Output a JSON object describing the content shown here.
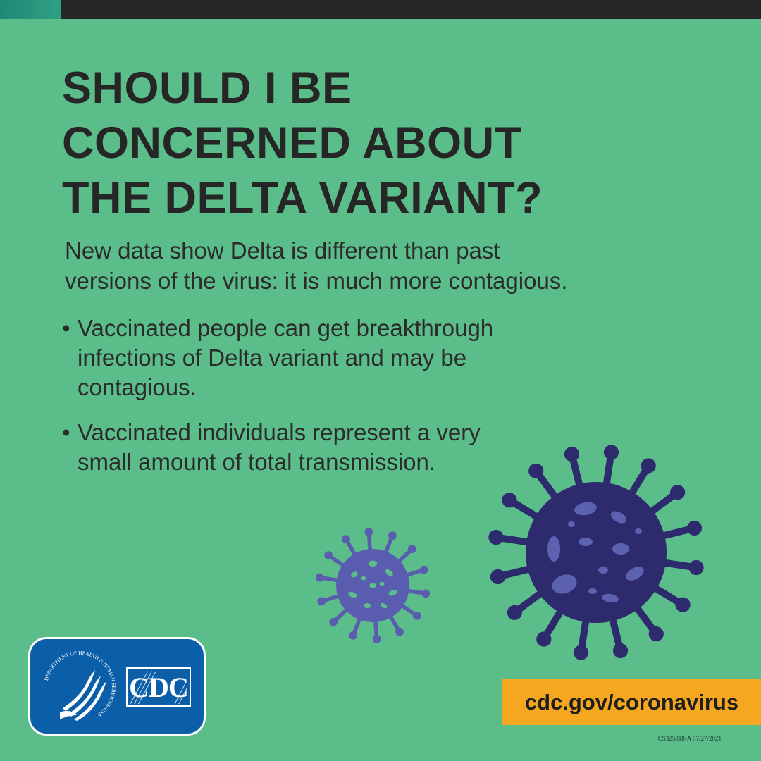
{
  "headline": {
    "line1": "SHOULD I BE",
    "line2": "CONCERNED ABOUT",
    "line3": "THE DELTA VARIANT?"
  },
  "intro": {
    "line1": "New data show Delta is different than past",
    "line2": "versions of the virus: it is much more contagious."
  },
  "bullets": [
    {
      "marker": "•",
      "line1": "Vaccinated people can get breakthrough",
      "line2": "infections of Delta variant and may be",
      "line3": "contagious."
    },
    {
      "marker": "•",
      "line1": "Vaccinated individuals represent a very",
      "line2": "small amount of total transmission."
    }
  ],
  "logo": {
    "hhs_ring_text": "DEPARTMENT OF HEALTH & HUMAN SERVICES·USA",
    "cdc_text": "CDC",
    "icon": "hhs-eagle-icon"
  },
  "url": "cdc.gov/coronavirus",
  "code": "CS325818-A 07/27/2021",
  "colors": {
    "background": "#5bbd8a",
    "topbar": "#262626",
    "headline": "#262626",
    "virus_large": "#2e2a6e",
    "virus_large_spots": "#5d62b0",
    "virus_small": "#5a5cb0",
    "virus_small_spots": "#5bbd8a",
    "logo_bg": "#0b5ea8",
    "url_bg": "#f5a71f"
  }
}
